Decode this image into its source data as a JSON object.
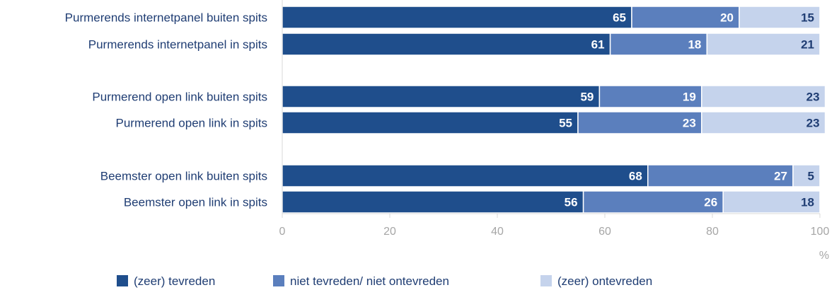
{
  "chart_data": {
    "type": "bar",
    "orientation": "horizontal",
    "stacked": true,
    "categories": [
      "Purmerends internetpanel buiten spits",
      "Purmerends internetpanel in spits",
      "Purmerend open link buiten spits",
      "Purmerend open link in spits",
      "Beemster open link buiten spits",
      "Beemster open link in spits"
    ],
    "series": [
      {
        "name": "(zeer) tevreden",
        "values": [
          65,
          61,
          59,
          55,
          68,
          56
        ],
        "color": "#1f4e8c"
      },
      {
        "name": "niet tevreden/ niet ontevreden",
        "values": [
          20,
          18,
          19,
          23,
          27,
          26
        ],
        "color": "#5b7fbd"
      },
      {
        "name": "(zeer) ontevreden",
        "values": [
          15,
          21,
          23,
          23,
          5,
          18
        ],
        "color": "#c5d3ec"
      }
    ],
    "groups": [
      [
        0,
        1
      ],
      [
        2,
        3
      ],
      [
        4,
        5
      ]
    ],
    "xlim": [
      0,
      100
    ],
    "xticks": [
      "0",
      "20",
      "40",
      "60",
      "80",
      "100"
    ],
    "xunit": "%",
    "grid": false,
    "legend": "bottom"
  }
}
